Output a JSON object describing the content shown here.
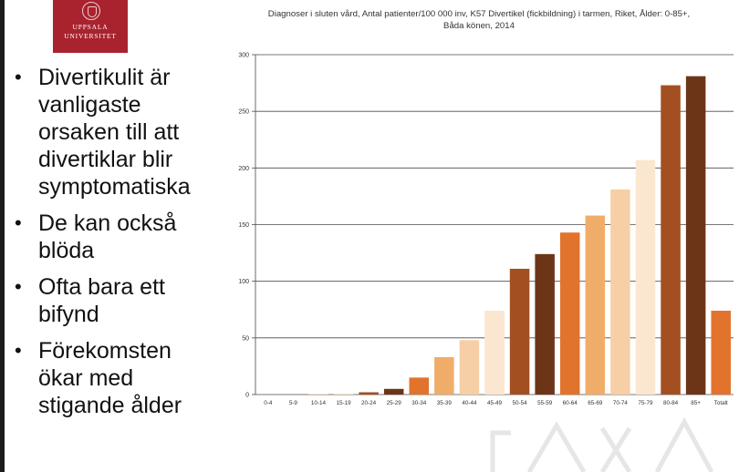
{
  "slide": {
    "logo": {
      "line1": "UPPSALA",
      "line2": "UNIVERSITET"
    },
    "bullets": [
      "Divertikulit är vanligaste orsaken till att divertiklar blir symptomatiska",
      "De kan också blöda",
      "Ofta bara ett bifynd",
      "Förekomsten ökar med stigande ålder"
    ]
  },
  "chart_data": {
    "type": "bar",
    "title": "Diagnoser i sluten vård, Antal patienter/100 000 inv, K57 Divertikel (fickbildning) i tarmen, Riket, Ålder: 0-85+,",
    "subtitle": "Båda könen, 2014",
    "categories": [
      "0-4",
      "5-9",
      "10-14",
      "15-19",
      "20-24",
      "25-29",
      "30-34",
      "35-39",
      "40-44",
      "45-49",
      "50-54",
      "55-59",
      "60-64",
      "65-69",
      "70-74",
      "75-79",
      "80-84",
      "85+",
      "Totalt"
    ],
    "values": [
      0,
      0,
      0.5,
      1,
      2,
      5,
      15,
      33,
      48,
      74,
      111,
      124,
      143,
      158,
      181,
      207,
      273,
      281,
      74
    ],
    "colors": [
      "#e2732d",
      "#f0ad6a",
      "#f6cfa6",
      "#fbe6d0",
      "#a34f21",
      "#6c3518",
      "#e2732d",
      "#f0ad6a",
      "#f6cfa6",
      "#fbe6d0",
      "#a34f21",
      "#6c3518",
      "#e2732d",
      "#f0ad6a",
      "#f6cfa6",
      "#fbe6d0",
      "#a34f21",
      "#6c3518",
      "#e2732d"
    ],
    "ylim": [
      0,
      300
    ],
    "yticks": [
      0,
      50,
      100,
      150,
      200,
      250,
      300
    ],
    "grid": true
  }
}
